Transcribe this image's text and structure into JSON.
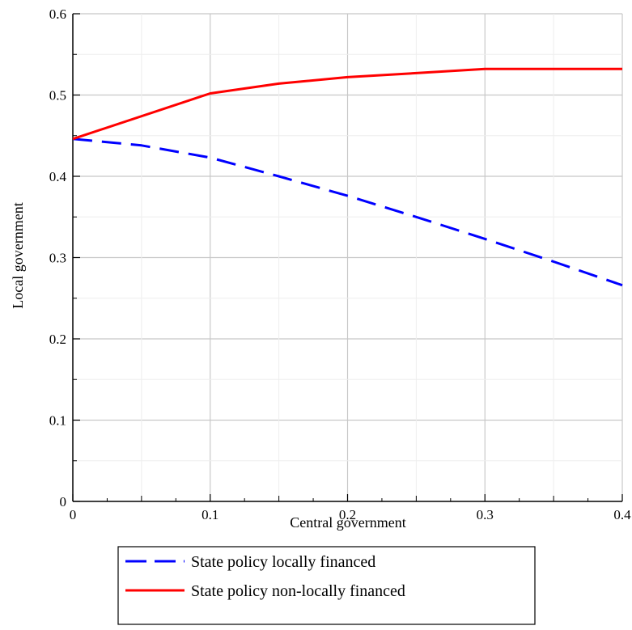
{
  "chart_data": {
    "type": "line",
    "xlabel": "Central government",
    "ylabel": "Local government",
    "xlim": [
      0,
      0.4
    ],
    "ylim": [
      0,
      0.6
    ],
    "grid": true,
    "x_ticks": [
      "0",
      "0.1",
      "0.2",
      "0.3",
      "0.4"
    ],
    "y_ticks": [
      "0",
      "0.1",
      "0.2",
      "0.3",
      "0.4",
      "0.5",
      "0.6"
    ],
    "legend_position": "bottom-center",
    "series": [
      {
        "name": "State policy locally financed",
        "color": "#0000ff",
        "style": "dashed",
        "x": [
          0,
          0.05,
          0.1,
          0.15,
          0.2,
          0.25,
          0.3,
          0.35,
          0.4
        ],
        "y": [
          0.446,
          0.438,
          0.423,
          0.4,
          0.376,
          0.35,
          0.323,
          0.295,
          0.266
        ]
      },
      {
        "name": "State policy non-locally financed",
        "color": "#ff0000",
        "style": "solid",
        "x": [
          0,
          0.1,
          0.15,
          0.2,
          0.25,
          0.3,
          0.35,
          0.4
        ],
        "y": [
          0.446,
          0.502,
          0.514,
          0.522,
          0.527,
          0.532,
          0.532,
          0.532
        ]
      }
    ]
  }
}
